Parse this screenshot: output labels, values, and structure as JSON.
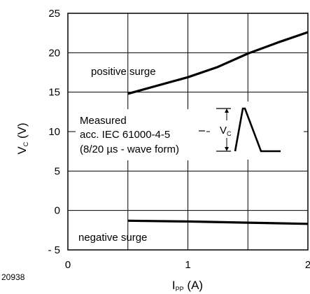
{
  "chart_data": {
    "type": "line",
    "x_axis": {
      "label": "I",
      "label_subscript": "PP",
      "unit": "(A)",
      "range": [
        0,
        2
      ],
      "ticks": [
        0,
        1,
        2
      ]
    },
    "y_axis": {
      "label": "V",
      "label_subscript": "C",
      "unit": "(V)",
      "range": [
        -5,
        25
      ],
      "ticks": [
        -5,
        0,
        5,
        10,
        15,
        20,
        25
      ],
      "tick_labels": [
        "- 5",
        "0",
        "5",
        "10",
        "15",
        "20",
        "25"
      ]
    },
    "grid": true,
    "series": [
      {
        "name": "positive surge",
        "x": [
          0.5,
          1.0,
          1.25,
          1.5,
          1.75,
          2.0
        ],
        "y": [
          14.8,
          16.9,
          18.2,
          19.9,
          21.3,
          22.6
        ]
      },
      {
        "name": "negative surge",
        "x": [
          0.5,
          1.0,
          1.5,
          2.0
        ],
        "y": [
          -1.3,
          -1.4,
          -1.55,
          -1.7
        ]
      }
    ],
    "annotations": {
      "measurement_note": [
        "Measured",
        "acc. IEC 61000-4-5",
        "(8/20 µs - wave form)"
      ],
      "inset_label": "V",
      "inset_label_subscript": "C"
    },
    "figure_id": "20938"
  }
}
